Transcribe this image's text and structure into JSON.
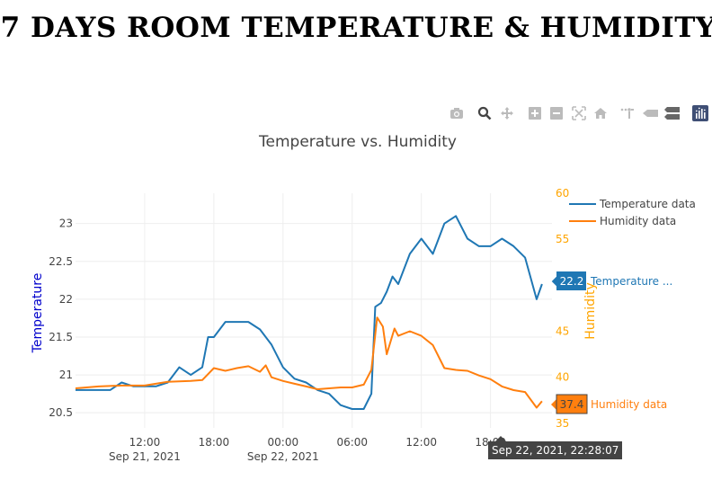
{
  "page": {
    "title": "7 DAYS ROOM TEMPERATURE & HUMIDITY"
  },
  "modebar": {
    "buttons": [
      "camera-icon",
      "zoom-icon",
      "pan-icon",
      "zoom-in-icon",
      "zoom-out-icon",
      "autoscale-icon",
      "reset-axes-icon",
      "spike-lines-icon",
      "hover-closest-icon",
      "hover-compare-icon",
      "plotly-logo-icon"
    ]
  },
  "chart_data": {
    "type": "line",
    "title": "Temperature vs. Humidity",
    "x_axis": {
      "type": "date",
      "range": [
        "2021-09-21 06:00",
        "2021-09-22 23:20"
      ],
      "tick_labels": [
        "12:00",
        "18:00",
        "00:00",
        "06:00",
        "12:00",
        "18:00"
      ],
      "tick_values": [
        "2021-09-21 12:00",
        "2021-09-21 18:00",
        "2021-09-22 00:00",
        "2021-09-22 06:00",
        "2021-09-22 12:00",
        "2021-09-22 18:00"
      ],
      "date_labels": [
        "Sep 21, 2021",
        "Sep 22, 2021"
      ],
      "date_label_values": [
        "2021-09-21 12:00",
        "2021-09-22 00:00"
      ],
      "grid": true
    },
    "y_axis": {
      "label": "Temperature",
      "range": [
        20.3,
        23.4
      ],
      "tick_labels": [
        "20.5",
        "21",
        "21.5",
        "22",
        "22.5",
        "23"
      ],
      "tick_values": [
        20.5,
        21,
        21.5,
        22,
        22.5,
        23
      ],
      "color": "#0000cc",
      "grid": true
    },
    "y2_axis": {
      "label": "Humidity",
      "range": [
        34.5,
        60
      ],
      "tick_labels": [
        "35",
        "40",
        "45",
        "50",
        "55",
        "60"
      ],
      "tick_values": [
        35,
        40,
        45,
        50,
        55,
        60
      ],
      "color": "#ffa500"
    },
    "legend": {
      "position": "top-right",
      "entries": [
        "Temperature data",
        "Humidity data"
      ]
    },
    "series": [
      {
        "name": "Temperature data",
        "axis": "y",
        "color": "#1f77b4",
        "x": [
          "2021-09-21 06:00",
          "2021-09-21 07:00",
          "2021-09-21 08:00",
          "2021-09-21 09:00",
          "2021-09-21 10:00",
          "2021-09-21 11:00",
          "2021-09-21 12:00",
          "2021-09-21 13:00",
          "2021-09-21 14:00",
          "2021-09-21 15:00",
          "2021-09-21 16:00",
          "2021-09-21 17:00",
          "2021-09-21 17:30",
          "2021-09-21 18:00",
          "2021-09-21 19:00",
          "2021-09-21 20:00",
          "2021-09-21 21:00",
          "2021-09-21 22:00",
          "2021-09-21 23:00",
          "2021-09-22 00:00",
          "2021-09-22 01:00",
          "2021-09-22 02:00",
          "2021-09-22 03:00",
          "2021-09-22 04:00",
          "2021-09-22 05:00",
          "2021-09-22 06:00",
          "2021-09-22 07:00",
          "2021-09-22 07:40",
          "2021-09-22 08:00",
          "2021-09-22 08:30",
          "2021-09-22 09:00",
          "2021-09-22 09:30",
          "2021-09-22 10:00",
          "2021-09-22 11:00",
          "2021-09-22 12:00",
          "2021-09-22 13:00",
          "2021-09-22 14:00",
          "2021-09-22 15:00",
          "2021-09-22 16:00",
          "2021-09-22 17:00",
          "2021-09-22 18:00",
          "2021-09-22 19:00",
          "2021-09-22 20:00",
          "2021-09-22 21:00",
          "2021-09-22 22:00",
          "2021-09-22 22:28"
        ],
        "values": [
          20.8,
          20.8,
          20.8,
          20.8,
          20.9,
          20.85,
          20.85,
          20.85,
          20.9,
          21.1,
          21.0,
          21.1,
          21.5,
          21.5,
          21.7,
          21.7,
          21.7,
          21.6,
          21.4,
          21.1,
          20.95,
          20.9,
          20.8,
          20.75,
          20.6,
          20.55,
          20.55,
          20.75,
          21.9,
          21.95,
          22.1,
          22.3,
          22.2,
          22.6,
          22.8,
          22.6,
          23.0,
          23.1,
          22.8,
          22.7,
          22.7,
          22.8,
          22.7,
          22.55,
          22.0,
          22.2
        ]
      },
      {
        "name": "Humidity data",
        "axis": "y2",
        "color": "#ff7f0e",
        "x": [
          "2021-09-21 06:00",
          "2021-09-21 08:00",
          "2021-09-21 10:00",
          "2021-09-21 12:00",
          "2021-09-21 14:00",
          "2021-09-21 16:00",
          "2021-09-21 17:00",
          "2021-09-21 18:00",
          "2021-09-21 19:00",
          "2021-09-21 20:00",
          "2021-09-21 21:00",
          "2021-09-21 22:00",
          "2021-09-21 22:30",
          "2021-09-21 23:00",
          "2021-09-22 00:00",
          "2021-09-22 01:00",
          "2021-09-22 02:00",
          "2021-09-22 03:00",
          "2021-09-22 04:00",
          "2021-09-22 05:00",
          "2021-09-22 06:00",
          "2021-09-22 07:00",
          "2021-09-22 07:40",
          "2021-09-22 08:10",
          "2021-09-22 08:40",
          "2021-09-22 09:00",
          "2021-09-22 09:40",
          "2021-09-22 10:00",
          "2021-09-22 11:00",
          "2021-09-22 12:00",
          "2021-09-22 13:00",
          "2021-09-22 14:00",
          "2021-09-22 15:00",
          "2021-09-22 16:00",
          "2021-09-22 17:00",
          "2021-09-22 18:00",
          "2021-09-22 19:00",
          "2021-09-22 20:00",
          "2021-09-22 21:00",
          "2021-09-22 22:00",
          "2021-09-22 22:28"
        ],
        "values": [
          38.8,
          39.0,
          39.1,
          39.1,
          39.5,
          39.6,
          39.7,
          41.0,
          40.7,
          41.0,
          41.2,
          40.6,
          41.3,
          40.0,
          39.6,
          39.3,
          39.0,
          38.7,
          38.8,
          38.9,
          38.9,
          39.2,
          40.8,
          46.5,
          45.5,
          42.5,
          45.3,
          44.5,
          45.0,
          44.5,
          43.5,
          41.0,
          40.8,
          40.7,
          40.2,
          39.8,
          39.0,
          38.6,
          38.4,
          36.7,
          37.4
        ]
      }
    ],
    "hover": {
      "x_label": "Sep 22, 2021, 22:28:07",
      "temperature_value": "22.2",
      "temperature_name": "Temperature ...",
      "humidity_value": "37.4",
      "humidity_name": "Humidity data"
    }
  }
}
